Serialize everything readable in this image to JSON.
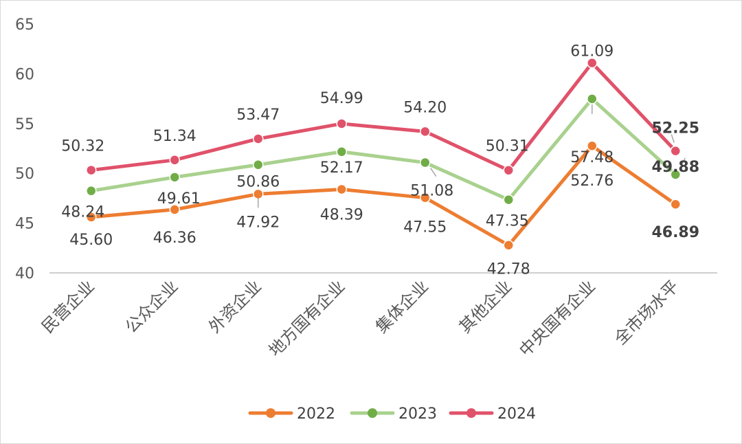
{
  "chart_data": {
    "type": "line",
    "categories": [
      "民营企业",
      "公众企业",
      "外资企业",
      "地方国有企业",
      "集体企业",
      "其他企业",
      "中央国有企业",
      "全市场水平"
    ],
    "ylim": [
      40,
      65
    ],
    "yticks": [
      40,
      45,
      50,
      55,
      60,
      65
    ],
    "grid": false,
    "legend": "bottom",
    "series": [
      {
        "name": "2022",
        "color": "#ED7D31",
        "values": [
          45.6,
          46.36,
          47.92,
          48.39,
          47.55,
          42.78,
          52.76,
          46.89
        ],
        "labels": [
          "45.60",
          "46.36",
          "47.92",
          "48.39",
          "47.55",
          "42.78",
          "52.76",
          "46.89"
        ]
      },
      {
        "name": "2023",
        "color": "#A9D18E",
        "marker_color": "#70AD47",
        "values": [
          48.24,
          49.61,
          50.86,
          52.17,
          51.08,
          47.35,
          57.48,
          49.88
        ],
        "labels": [
          "48.24",
          "49.61",
          "50.86",
          "52.17",
          "51.08",
          "47.35",
          "57.48",
          "49.88"
        ]
      },
      {
        "name": "2024",
        "color": "#E0526A",
        "values": [
          50.32,
          51.34,
          53.47,
          54.99,
          54.2,
          50.31,
          61.09,
          52.25
        ],
        "labels": [
          "50.32",
          "51.34",
          "53.47",
          "54.99",
          "54.20",
          "50.31",
          "61.09",
          "52.25"
        ]
      }
    ]
  }
}
